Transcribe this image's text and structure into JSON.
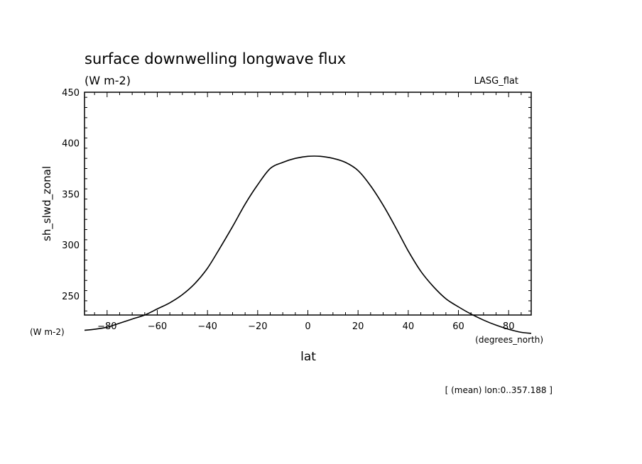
{
  "chart_data": {
    "type": "line",
    "title": "surface downwelling longwave flux",
    "units": "(W m-2)",
    "model_label": "LASG_flat",
    "ylabel": "sh_slwd_zonal",
    "xlabel": "lat",
    "x_unit_label": "(degrees_north)",
    "y_unit_label": "(W m-2)",
    "footnote": "[ (mean) lon:0..357.188 ]",
    "xlim": [
      -89,
      89
    ],
    "ylim": [
      231,
      450
    ],
    "x_ticks": [
      -80,
      -60,
      -40,
      -20,
      0,
      20,
      40,
      60,
      80
    ],
    "x_tick_labels": [
      "-80",
      "-60",
      "-40",
      "-20",
      "0",
      "20",
      "40",
      "60",
      "80"
    ],
    "y_ticks": [
      250,
      300,
      350,
      400,
      450
    ],
    "y_tick_labels": [
      "250",
      "300",
      "350",
      "400",
      "450"
    ],
    "grid": false,
    "series": [
      {
        "x": [
          -89,
          -85,
          -80,
          -75,
          -70,
          -65,
          -60,
          -55,
          -50,
          -45,
          -40,
          -35,
          -30,
          -25,
          -20,
          -15,
          -10,
          -5,
          0,
          5,
          10,
          15,
          20,
          25,
          30,
          35,
          40,
          45,
          50,
          55,
          60,
          65,
          70,
          75,
          80,
          85,
          89
        ],
        "y": [
          216,
          217,
          219,
          223,
          227,
          231,
          237,
          243,
          251,
          262,
          277,
          297,
          318,
          340,
          359,
          375,
          381,
          385,
          387,
          387,
          385,
          381,
          373,
          358,
          339,
          317,
          294,
          274,
          259,
          247,
          239,
          232,
          226,
          221,
          217,
          214,
          213
        ]
      }
    ]
  }
}
